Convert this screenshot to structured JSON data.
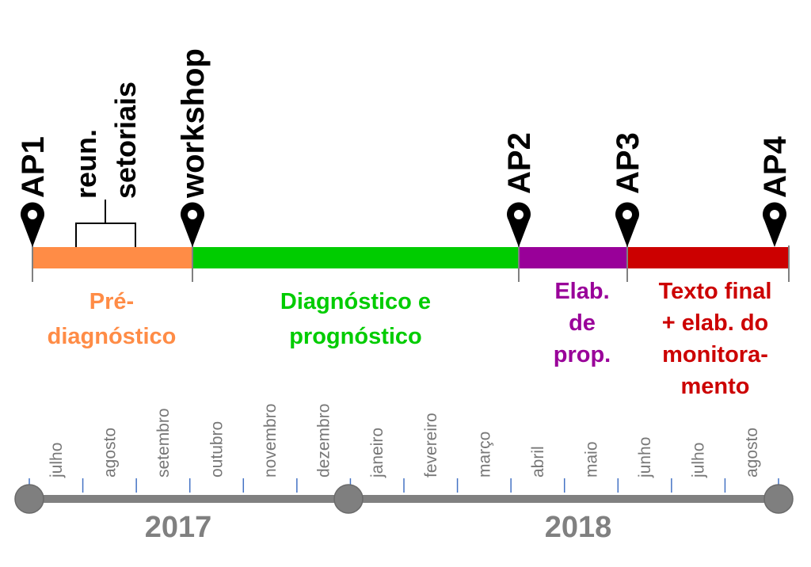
{
  "timeline": {
    "phases": [
      {
        "name": "phase-pre-diagnostico",
        "lines": [
          "Pré-",
          "diagnóstico"
        ],
        "color": "#FF8C46"
      },
      {
        "name": "phase-diagnostico-prognostico",
        "lines": [
          "Diagnóstico e",
          "prognóstico"
        ],
        "color": "#00CC00"
      },
      {
        "name": "phase-elab-prop",
        "lines": [
          "Elab.",
          "de",
          "prop."
        ],
        "color": "#990099"
      },
      {
        "name": "phase-texto-final",
        "lines": [
          "Texto final",
          "+ elab. do",
          "monitora-",
          "mento"
        ],
        "color": "#CC0000"
      }
    ],
    "milestones": [
      {
        "name": "milestone-ap1",
        "label": "AP1"
      },
      {
        "name": "milestone-workshop",
        "label": "workshop"
      },
      {
        "name": "milestone-ap2",
        "label": "AP2"
      },
      {
        "name": "milestone-ap3",
        "label": "AP3"
      },
      {
        "name": "milestone-ap4",
        "label": "AP4"
      }
    ],
    "activity": {
      "lines": [
        "reun.",
        "setoriais"
      ]
    },
    "months": [
      "julho",
      "agosto",
      "setembro",
      "outubro",
      "novembro",
      "dezembro",
      "janeiro",
      "fevereiro",
      "março",
      "abril",
      "maio",
      "junho",
      "julho",
      "agosto"
    ],
    "years": [
      "2017",
      "2018"
    ],
    "colors": {
      "axis": "#808080",
      "tick": "#4472C4",
      "marker": "#000000",
      "bracket": "#000000"
    }
  }
}
